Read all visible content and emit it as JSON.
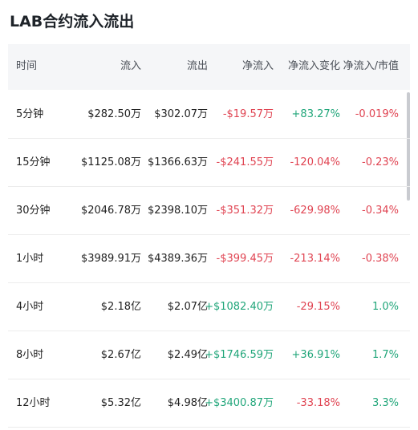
{
  "title": "LAB合约流入流出",
  "table": {
    "header": [
      "时间",
      "流入",
      "流出",
      "净流入",
      "净流入变化",
      "净流入/市值"
    ],
    "rows": [
      [
        "5分钟",
        "$282.50万",
        "$302.07万",
        "-$19.57万",
        "+83.27%",
        "-0.019%"
      ],
      [
        "15分钟",
        "$1125.08万",
        "$1366.63万",
        "-$241.55万",
        "-120.04%",
        "-0.23%"
      ],
      [
        "30分钟",
        "$2046.78万",
        "$2398.10万",
        "-$351.32万",
        "-629.98%",
        "-0.34%"
      ],
      [
        "1小时",
        "$3989.91万",
        "$4389.36万",
        "-$399.45万",
        "-213.14%",
        "-0.38%"
      ],
      [
        "4小时",
        "$2.18亿",
        "$2.07亿",
        "+$1082.40万",
        "-29.15%",
        "1.0%"
      ],
      [
        "8小时",
        "$2.67亿",
        "$2.49亿",
        "+$1746.59万",
        "+36.91%",
        "1.7%"
      ],
      [
        "12小时",
        "$5.32亿",
        "$4.98亿",
        "+$3400.87万",
        "-33.18%",
        "3.3%"
      ]
    ]
  }
}
